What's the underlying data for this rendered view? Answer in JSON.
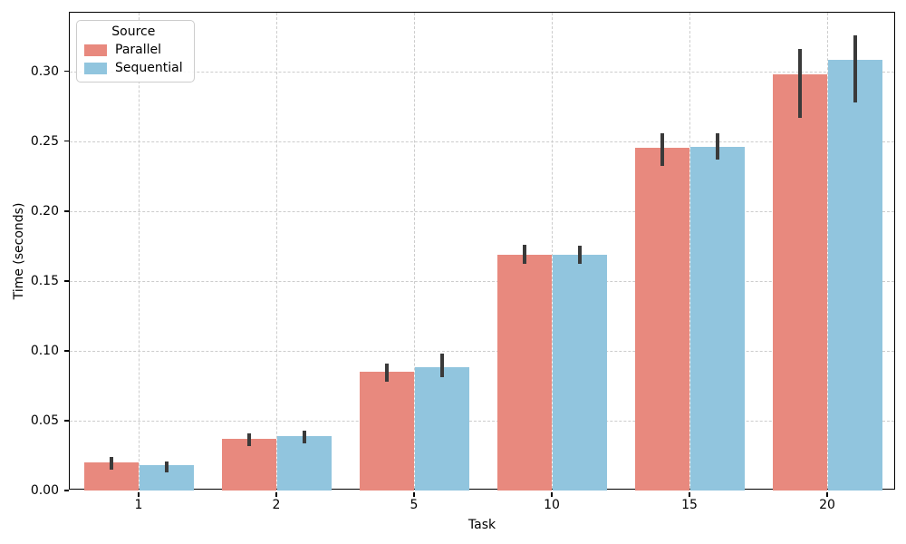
{
  "chart_data": {
    "type": "bar",
    "title": "",
    "xlabel": "Task",
    "ylabel": "Time (seconds)",
    "categories": [
      "1",
      "2",
      "5",
      "10",
      "15",
      "20"
    ],
    "series": [
      {
        "name": "Parallel",
        "color": "#e8897e",
        "values": [
          0.02,
          0.037,
          0.085,
          0.169,
          0.245,
          0.298
        ],
        "ci_low": [
          0.015,
          0.032,
          0.078,
          0.162,
          0.232,
          0.267
        ],
        "ci_high": [
          0.024,
          0.041,
          0.091,
          0.176,
          0.256,
          0.316
        ]
      },
      {
        "name": "Sequential",
        "color": "#91c5de",
        "values": [
          0.018,
          0.039,
          0.088,
          0.169,
          0.246,
          0.308
        ],
        "ci_low": [
          0.013,
          0.034,
          0.081,
          0.162,
          0.237,
          0.278
        ],
        "ci_high": [
          0.021,
          0.043,
          0.098,
          0.175,
          0.256,
          0.326
        ]
      }
    ],
    "ylim": [
      0,
      0.342
    ],
    "yticks": [
      0.0,
      0.05,
      0.1,
      0.15,
      0.2,
      0.25,
      0.3
    ],
    "ytick_labels": [
      "0.00",
      "0.05",
      "0.10",
      "0.15",
      "0.20",
      "0.25",
      "0.30"
    ],
    "legend": {
      "title": "Source",
      "entries": [
        "Parallel",
        "Sequential"
      ],
      "position": "upper-left"
    },
    "grid": {
      "style": "dashed",
      "color": "#cccccc",
      "axes": "both"
    },
    "errorbar_color": "#3a3a3a",
    "spine_color": "#000000"
  }
}
